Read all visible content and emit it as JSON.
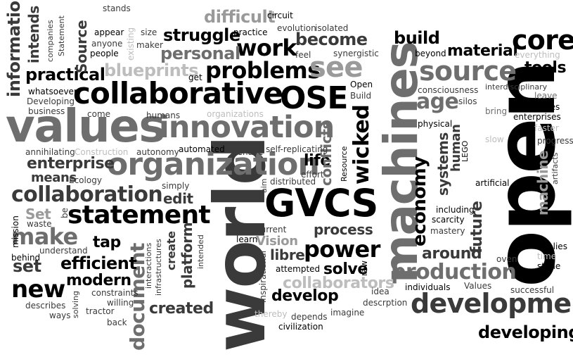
{
  "words": {
    "open": "open",
    "world": "world",
    "machines": "machines",
    "values": "values",
    "collaborative": "collaborative",
    "innovation": "innovation",
    "organization": "organization",
    "GVCS": "GVCS",
    "OSE": "OSE",
    "source": "source",
    "development": "development",
    "statement": "statement",
    "collaboration": "collaboration",
    "problems": "problems",
    "see": "see",
    "core": "core",
    "work": "work",
    "power": "power",
    "new": "new",
    "make": "make",
    "economy": "economy",
    "wicked": "wicked",
    "production": "production",
    "document": "document",
    "developing": "developing",
    "build": "build",
    "tools": "tools",
    "material": "material",
    "age": "age",
    "become": "become",
    "personal": "personal",
    "struggle": "struggle",
    "difficult": "difficult",
    "blueprints": "blueprints",
    "practical": "practical",
    "information": "information",
    "intends": "intends",
    "Source_v": "Source",
    "enterprise": "enterprise",
    "means": "means",
    "set": "set",
    "efficient": "efficient",
    "modern": "modern",
    "tap": "tap",
    "created": "created",
    "platform": "platform",
    "create": "create",
    "edit": "edit",
    "Set": "Set",
    "life": "life",
    "conflicts": "conflicts",
    "Vision": "Vision",
    "libre": "libre",
    "solve": "solve",
    "develop": "develop",
    "collaborators": "collaborators",
    "around": "around",
    "process": "process",
    "future": "future",
    "systems": "systems",
    "human": "human",
    "machine": "machine",
    "consciousness": "consciousness",
    "interdisciplinary": "interdisciplinary",
    "everything": "everything",
    "beyond": "beyond",
    "leave": "leave",
    "silos": "silos",
    "takes": "takes",
    "bring": "bring",
    "enterprises": "enterprises",
    "faster": "faster",
    "slow": "slow",
    "physical": "physical",
    "progress": "progress",
    "LEGO": "LEGO",
    "artificial": "artificial",
    "artifacts": "artifacts",
    "including": "including",
    "scarcity": "scarcity",
    "mastery": "mastery",
    "implies": "implies",
    "time": "time",
    "stone": "stone",
    "oven": "oven",
    "Values": "Values",
    "successful": "successful",
    "individuals": "individuals",
    "idea": "idea",
    "descrption": "descrption",
    "raw": "raw",
    "imagine": "imagine",
    "depends": "depends",
    "thereby": "thereby",
    "civilization": "civilization",
    "inspirational": "inspirational",
    "attempted": "attempted",
    "current": "current",
    "learn": "learn",
    "aim": "aim",
    "distributed": "distributed",
    "effort": "effort",
    "Resource": "Resource",
    "Build": "Build",
    "Open_s": "Open",
    "synergistic": "synergistic",
    "feel": "feel",
    "isolated": "isolated",
    "evolution": "evolution",
    "circuit": "circuit",
    "practice": "practice",
    "stands": "stands",
    "appear": "appear",
    "size": "size",
    "existing": "existing",
    "maker": "maker",
    "people": "people",
    "anyone": "anyone",
    "companies": "companies",
    "Statement": "Statement",
    "whatsoever": "whatsoever",
    "Developing": "Developing",
    "business": "business",
    "come": "come",
    "humans": "humans",
    "organizations": "organizations",
    "get": "get",
    "annihilating": "annihilating",
    "Construction": "Construction",
    "autonomy": "autonomy",
    "automated": "automated",
    "behave": "behave",
    "self_replicating": "self-replicating",
    "Ecology": "Ecology",
    "simply": "simply",
    "be": "be",
    "waste": "waste",
    "mission": "mission",
    "behind": "behind",
    "understand": "understand",
    "interactions": "interactions",
    "infrastructures": "infrastructures",
    "intended": "intended",
    "constraints": "constraints",
    "willing": "willing",
    "describes": "describes",
    "ways": "ways",
    "solving": "solving",
    "tractor": "tractor",
    "back": "back"
  }
}
